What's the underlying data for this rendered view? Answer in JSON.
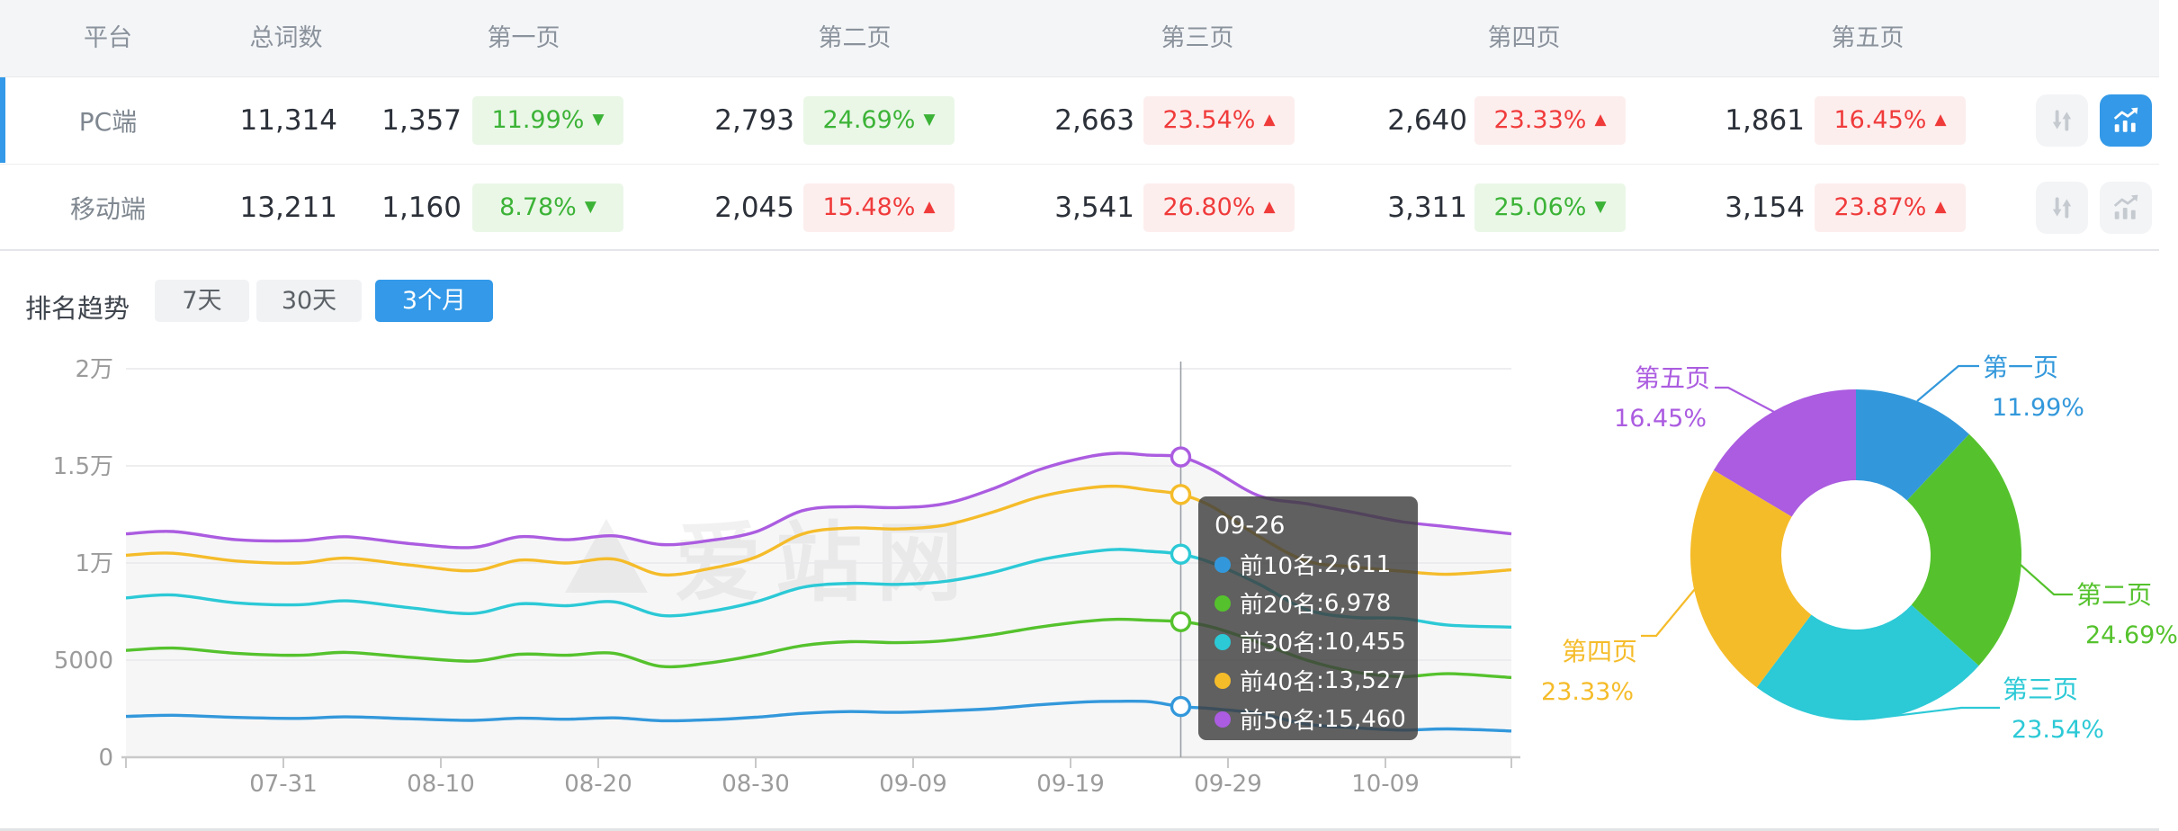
{
  "table": {
    "headers": [
      "平台",
      "总词数",
      "第一页",
      "第二页",
      "第三页",
      "第四页",
      "第五页"
    ],
    "up_glyph": "▲",
    "down_glyph": "▼",
    "rows": [
      {
        "platform": "PC端",
        "total": "11,314",
        "active": true,
        "pages": [
          {
            "count": "1,357",
            "pct": "11.99%",
            "dir": "down"
          },
          {
            "count": "2,793",
            "pct": "24.69%",
            "dir": "down"
          },
          {
            "count": "2,663",
            "pct": "23.54%",
            "dir": "up"
          },
          {
            "count": "2,640",
            "pct": "23.33%",
            "dir": "up"
          },
          {
            "count": "1,861",
            "pct": "16.45%",
            "dir": "up"
          }
        ]
      },
      {
        "platform": "移动端",
        "total": "13,211",
        "active": false,
        "pages": [
          {
            "count": "1,160",
            "pct": "8.78%",
            "dir": "down"
          },
          {
            "count": "2,045",
            "pct": "15.48%",
            "dir": "up"
          },
          {
            "count": "3,541",
            "pct": "26.80%",
            "dir": "up"
          },
          {
            "count": "3,311",
            "pct": "25.06%",
            "dir": "down"
          },
          {
            "count": "3,154",
            "pct": "23.87%",
            "dir": "up"
          }
        ]
      }
    ]
  },
  "trend": {
    "title": "排名趋势",
    "ranges": [
      "7天",
      "30天",
      "3个月"
    ],
    "active_range": "3个月"
  },
  "watermark": "爱站网",
  "icons": {
    "sort": "sort-arrows",
    "chart": "trend-chart"
  },
  "colors": {
    "accent_blue": "#3399e8",
    "badge_green_fg": "#3cb337",
    "badge_green_bg": "#eaf7e7",
    "badge_red_fg": "#f03b3b",
    "badge_red_bg": "#fdeeee",
    "axis_text": "#9b9b9b",
    "grid_line": "#e9e9ec"
  },
  "tooltip": {
    "date": "09-26",
    "rows": [
      {
        "label": "前10名",
        "value": "2,611",
        "color": "#3398db"
      },
      {
        "label": "前20名",
        "value": "6,978",
        "color": "#55c22d"
      },
      {
        "label": "前30名",
        "value": "10,455",
        "color": "#2cc9d6"
      },
      {
        "label": "前40名",
        "value": "13,527",
        "color": "#f5bc2a"
      },
      {
        "label": "前50名",
        "value": "15,460",
        "color": "#ab5ce0"
      }
    ]
  },
  "chart_data": [
    {
      "type": "line",
      "title": "排名趋势 3个月",
      "xlabel": "",
      "ylabel": "",
      "ylim": [
        0,
        20000
      ],
      "grid": true,
      "legend_position": "none",
      "x_range": [
        "07-21",
        "10-17"
      ],
      "x_tick_labels": [
        "07-31",
        "08-10",
        "08-20",
        "08-30",
        "09-09",
        "09-19",
        "09-29",
        "10-09"
      ],
      "y_tick_labels": [
        "0",
        "5000",
        "1万",
        "1.5万",
        "2万"
      ],
      "y_tick_values": [
        0,
        5000,
        10000,
        15000,
        20000
      ],
      "anchor_dates": [
        "07-21",
        "07-24",
        "07-28",
        "08-01",
        "08-04",
        "08-08",
        "08-12",
        "08-15",
        "08-18",
        "08-21",
        "08-24",
        "08-27",
        "08-30",
        "09-02",
        "09-05",
        "09-08",
        "09-11",
        "09-14",
        "09-17",
        "09-20",
        "09-22",
        "09-24",
        "09-26",
        "09-28",
        "10-01",
        "10-04",
        "10-07",
        "10-10",
        "10-13",
        "10-17"
      ],
      "series": [
        {
          "name": "前10名",
          "color": "#3398db",
          "values": [
            2100,
            2160,
            2050,
            2000,
            2080,
            1980,
            1900,
            2010,
            1960,
            2030,
            1880,
            1930,
            2060,
            2260,
            2350,
            2310,
            2390,
            2500,
            2700,
            2850,
            2880,
            2860,
            2611,
            2500,
            2250,
            1700,
            1520,
            1400,
            1460,
            1350
          ]
        },
        {
          "name": "前20名",
          "color": "#55c22d",
          "values": [
            5500,
            5620,
            5350,
            5250,
            5400,
            5150,
            4950,
            5300,
            5250,
            5350,
            4680,
            4850,
            5250,
            5750,
            5950,
            5900,
            6000,
            6300,
            6700,
            7000,
            7100,
            7050,
            6978,
            6700,
            5900,
            5000,
            4400,
            4150,
            4300,
            4100
          ]
        },
        {
          "name": "前30名",
          "color": "#2cc9d6",
          "values": [
            8200,
            8350,
            7950,
            7850,
            8050,
            7700,
            7400,
            7900,
            7800,
            8000,
            7300,
            7500,
            8000,
            8750,
            8950,
            8900,
            9050,
            9500,
            10150,
            10550,
            10700,
            10600,
            10455,
            10000,
            8900,
            7600,
            7200,
            7150,
            6800,
            6700
          ]
        },
        {
          "name": "前40名",
          "color": "#f5bc2a",
          "values": [
            10400,
            10500,
            10100,
            10000,
            10250,
            9900,
            9600,
            10150,
            10000,
            10200,
            9400,
            9700,
            10300,
            11500,
            11800,
            11750,
            11950,
            12600,
            13400,
            13850,
            13950,
            13750,
            13527,
            12900,
            11350,
            10100,
            9800,
            9580,
            9420,
            9650
          ]
        },
        {
          "name": "前50名",
          "color": "#ab5ce0",
          "values": [
            11500,
            11620,
            11200,
            11150,
            11350,
            11000,
            10800,
            11350,
            11200,
            11400,
            10950,
            11150,
            11600,
            12700,
            12900,
            12850,
            13050,
            13800,
            14800,
            15450,
            15650,
            15550,
            15460,
            14800,
            13450,
            13050,
            12600,
            12130,
            11860,
            11500
          ]
        }
      ],
      "highlight": {
        "date": "09-26",
        "values": [
          2611,
          6978,
          10455,
          13527,
          15460
        ]
      }
    },
    {
      "type": "pie",
      "donut": true,
      "legend_position": "labels-outside",
      "slices": [
        {
          "label": "第一页",
          "pct": 11.99,
          "pct_label": "11.99%",
          "color": "#3398db"
        },
        {
          "label": "第二页",
          "pct": 24.69,
          "pct_label": "24.69%",
          "color": "#55c22d"
        },
        {
          "label": "第三页",
          "pct": 23.54,
          "pct_label": "23.54%",
          "color": "#2cc9d6"
        },
        {
          "label": "第四页",
          "pct": 23.33,
          "pct_label": "23.33%",
          "color": "#f5bc2a"
        },
        {
          "label": "第五页",
          "pct": 16.45,
          "pct_label": "16.45%",
          "color": "#ab5ce0"
        }
      ]
    }
  ]
}
